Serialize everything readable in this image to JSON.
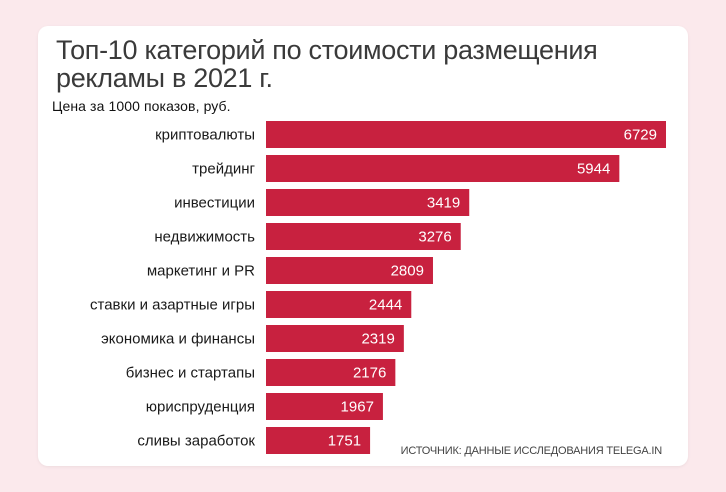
{
  "chart_data": {
    "type": "bar",
    "orientation": "horizontal",
    "title": "Топ-10 категорий по стоимости размещения\n рекламы в 2021 г.",
    "ylabel": "Цена за 1000 показов, руб.",
    "categories": [
      "криптовалюты",
      "трейдинг",
      "инвестиции",
      "недвижимость",
      "маркетинг и PR",
      "ставки и азартные игры",
      "экономика и финансы",
      "бизнес и стартапы",
      "юриспруденция",
      "сливы заработок"
    ],
    "values": [
      6729,
      5944,
      3419,
      3276,
      2809,
      2444,
      2319,
      2176,
      1967,
      1751
    ],
    "xlim": [
      0,
      6729
    ],
    "source": "ИСТОЧНИК: ДАННЫЕ ИССЛЕДОВАНИЯ TELEGA.IN",
    "colors": {
      "bar": "#c8213f",
      "background": "#fbe9ec",
      "card": "#ffffff"
    }
  }
}
